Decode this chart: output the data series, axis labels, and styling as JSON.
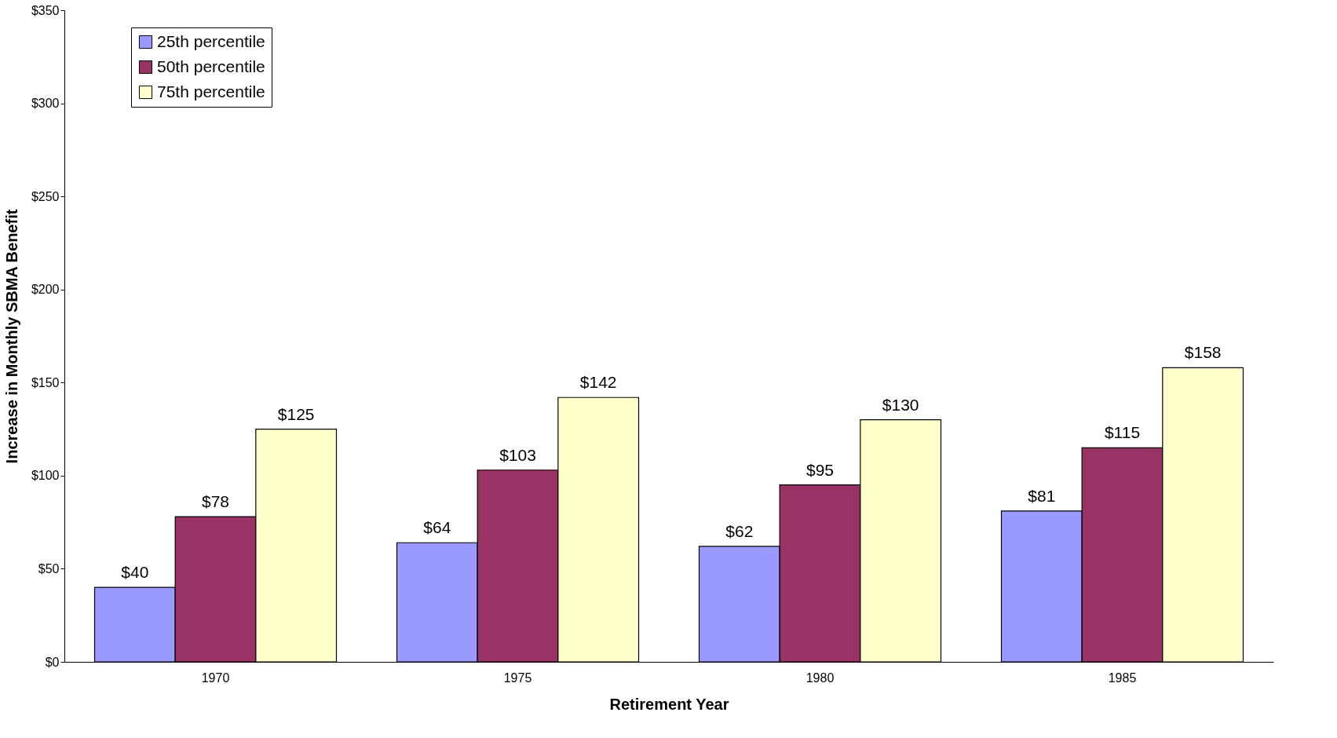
{
  "chart_data": {
    "type": "bar",
    "xlabel": "Retirement Year",
    "ylabel": "Increase in Monthly SBMA Benefit",
    "categories": [
      "1970",
      "1975",
      "1980",
      "1985"
    ],
    "series": [
      {
        "name": "25th percentile",
        "color": "#9999ff",
        "values": [
          40,
          64,
          62,
          81
        ],
        "value_labels": [
          "$40",
          "$64",
          "$62",
          "$81"
        ]
      },
      {
        "name": "50th percentile",
        "color": "#993366",
        "values": [
          78,
          103,
          95,
          115
        ],
        "value_labels": [
          "$78",
          "$103",
          "$95",
          "$115"
        ]
      },
      {
        "name": "75th percentile",
        "color": "#ffffcc",
        "values": [
          125,
          142,
          130,
          158
        ],
        "value_labels": [
          "$125",
          "$142",
          "$130",
          "$158"
        ]
      }
    ],
    "ylim": [
      0,
      350
    ],
    "yticks": [
      {
        "value": 0,
        "label": "$0"
      },
      {
        "value": 50,
        "label": "$50"
      },
      {
        "value": 100,
        "label": "$100"
      },
      {
        "value": 150,
        "label": "$150"
      },
      {
        "value": 200,
        "label": "$200"
      },
      {
        "value": 250,
        "label": "$250"
      },
      {
        "value": 300,
        "label": "$300"
      },
      {
        "value": 350,
        "label": "$350"
      }
    ],
    "grid": false,
    "legend": "top left"
  }
}
